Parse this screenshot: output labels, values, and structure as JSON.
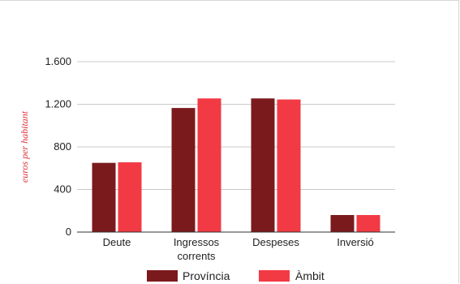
{
  "chart_data": {
    "type": "bar",
    "categories": [
      "Deute",
      "Ingressos corrents",
      "Despeses",
      "Inversió"
    ],
    "category_lines": [
      [
        "Deute"
      ],
      [
        "Ingressos",
        "corrents"
      ],
      [
        "Despeses"
      ],
      [
        "Inversió"
      ]
    ],
    "series": [
      {
        "name": "Província",
        "values": [
          650,
          1165,
          1255,
          160
        ],
        "color": "#7b1a1d"
      },
      {
        "name": "Àmbit",
        "values": [
          655,
          1255,
          1245,
          160
        ],
        "color": "#f23a44"
      }
    ],
    "ylabel": "euros per habitant",
    "ylim": [
      0,
      1600
    ],
    "yticks": [
      0,
      400,
      800,
      1200,
      1600
    ],
    "ytick_labels": [
      "0",
      "400",
      "800",
      "1.200",
      "1.600"
    ],
    "grid": true,
    "legend_position": "bottom"
  }
}
